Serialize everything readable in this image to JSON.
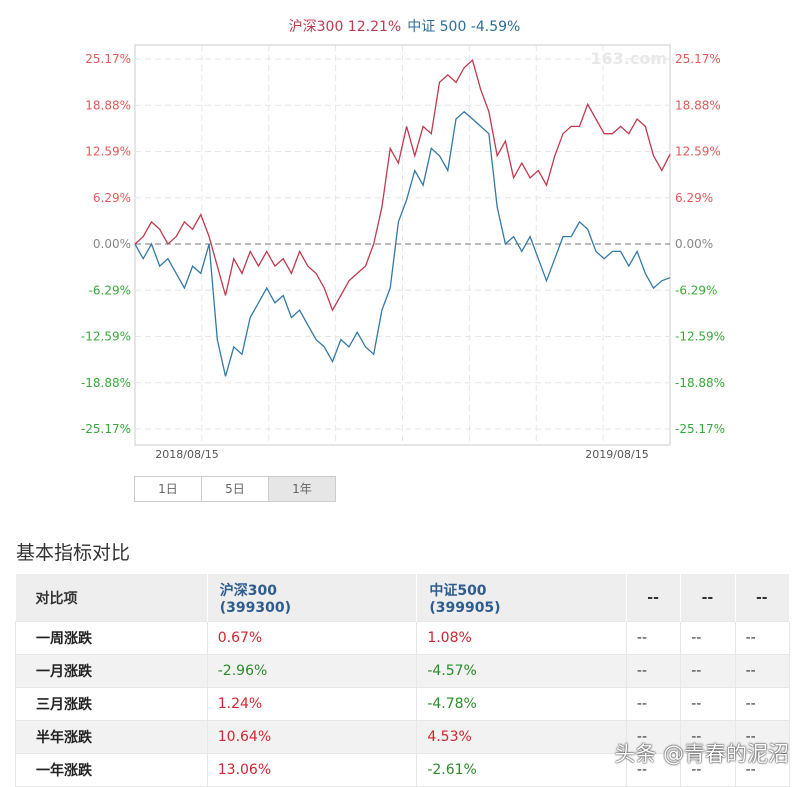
{
  "legend": {
    "hs300": "沪深300 12.21%",
    "zz500": "中证 500 -4.59%"
  },
  "watermark_logo": "163.com",
  "chart_data": {
    "type": "line",
    "ylim": [
      -25.17,
      25.17
    ],
    "yticks": [
      "25.17%",
      "18.88%",
      "12.59%",
      "6.29%",
      "0.00%",
      "-6.29%",
      "-12.59%",
      "-18.88%",
      "-25.17%"
    ],
    "xticks": [
      "2018/08/15",
      "2019/08/15"
    ],
    "colors": {
      "hs300": "#c0394f",
      "zz500": "#3479a6",
      "pos": "#e05a5a",
      "neg": "#3aa83a",
      "zero": "#888888"
    },
    "series": [
      {
        "name": "沪深300",
        "values": [
          0,
          1,
          3,
          2,
          0,
          1,
          3,
          2,
          4,
          1,
          -3,
          -7,
          -2,
          -4,
          -1,
          -3,
          -1,
          -3,
          -2,
          -4,
          -1,
          -3,
          -4,
          -6,
          -9,
          -7,
          -5,
          -4,
          -3,
          0,
          5,
          13,
          11,
          16,
          12,
          16,
          15,
          22,
          23,
          22,
          24,
          25,
          21,
          18,
          12,
          14,
          9,
          11,
          9,
          10,
          8,
          12,
          15,
          16,
          16,
          19,
          17,
          15,
          15,
          16,
          15,
          17,
          16,
          12,
          10,
          12.21
        ]
      },
      {
        "name": "中证500",
        "values": [
          0,
          -2,
          0,
          -3,
          -2,
          -4,
          -6,
          -3,
          -4,
          0,
          -13,
          -18,
          -14,
          -15,
          -10,
          -8,
          -6,
          -8,
          -7,
          -10,
          -9,
          -11,
          -13,
          -14,
          -16,
          -13,
          -14,
          -12,
          -14,
          -15,
          -9,
          -6,
          3,
          6,
          10,
          8,
          13,
          12,
          10,
          17,
          18,
          17,
          16,
          15,
          5,
          0,
          1,
          -1,
          1,
          -2,
          -5,
          -2,
          1,
          1,
          3,
          2,
          -1,
          -2,
          -1,
          -1,
          -3,
          -1,
          -4,
          -6,
          -5,
          -4.59
        ]
      }
    ]
  },
  "period_buttons": [
    "1日",
    "5日",
    "1年"
  ],
  "section_title": "基本指标对比",
  "table": {
    "headers": [
      [
        "对比项",
        ""
      ],
      [
        "沪深300",
        "(399300)"
      ],
      [
        "中证500",
        "(399905)"
      ],
      [
        "--",
        ""
      ],
      [
        "--",
        ""
      ],
      [
        "--",
        ""
      ]
    ],
    "rows": [
      {
        "label": "一周涨跌",
        "v": [
          "0.67%",
          "1.08%",
          "--",
          "--",
          "--"
        ]
      },
      {
        "label": "一月涨跌",
        "v": [
          "-2.96%",
          "-4.57%",
          "--",
          "--",
          "--"
        ]
      },
      {
        "label": "三月涨跌",
        "v": [
          "1.24%",
          "-4.78%",
          "--",
          "--",
          "--"
        ]
      },
      {
        "label": "半年涨跌",
        "v": [
          "10.64%",
          "4.53%",
          "--",
          "--",
          "--"
        ]
      },
      {
        "label": "一年涨跌",
        "v": [
          "13.06%",
          "-2.61%",
          "--",
          "--",
          "--"
        ]
      }
    ]
  },
  "footer_watermark": "头条 @青春的泥沼"
}
